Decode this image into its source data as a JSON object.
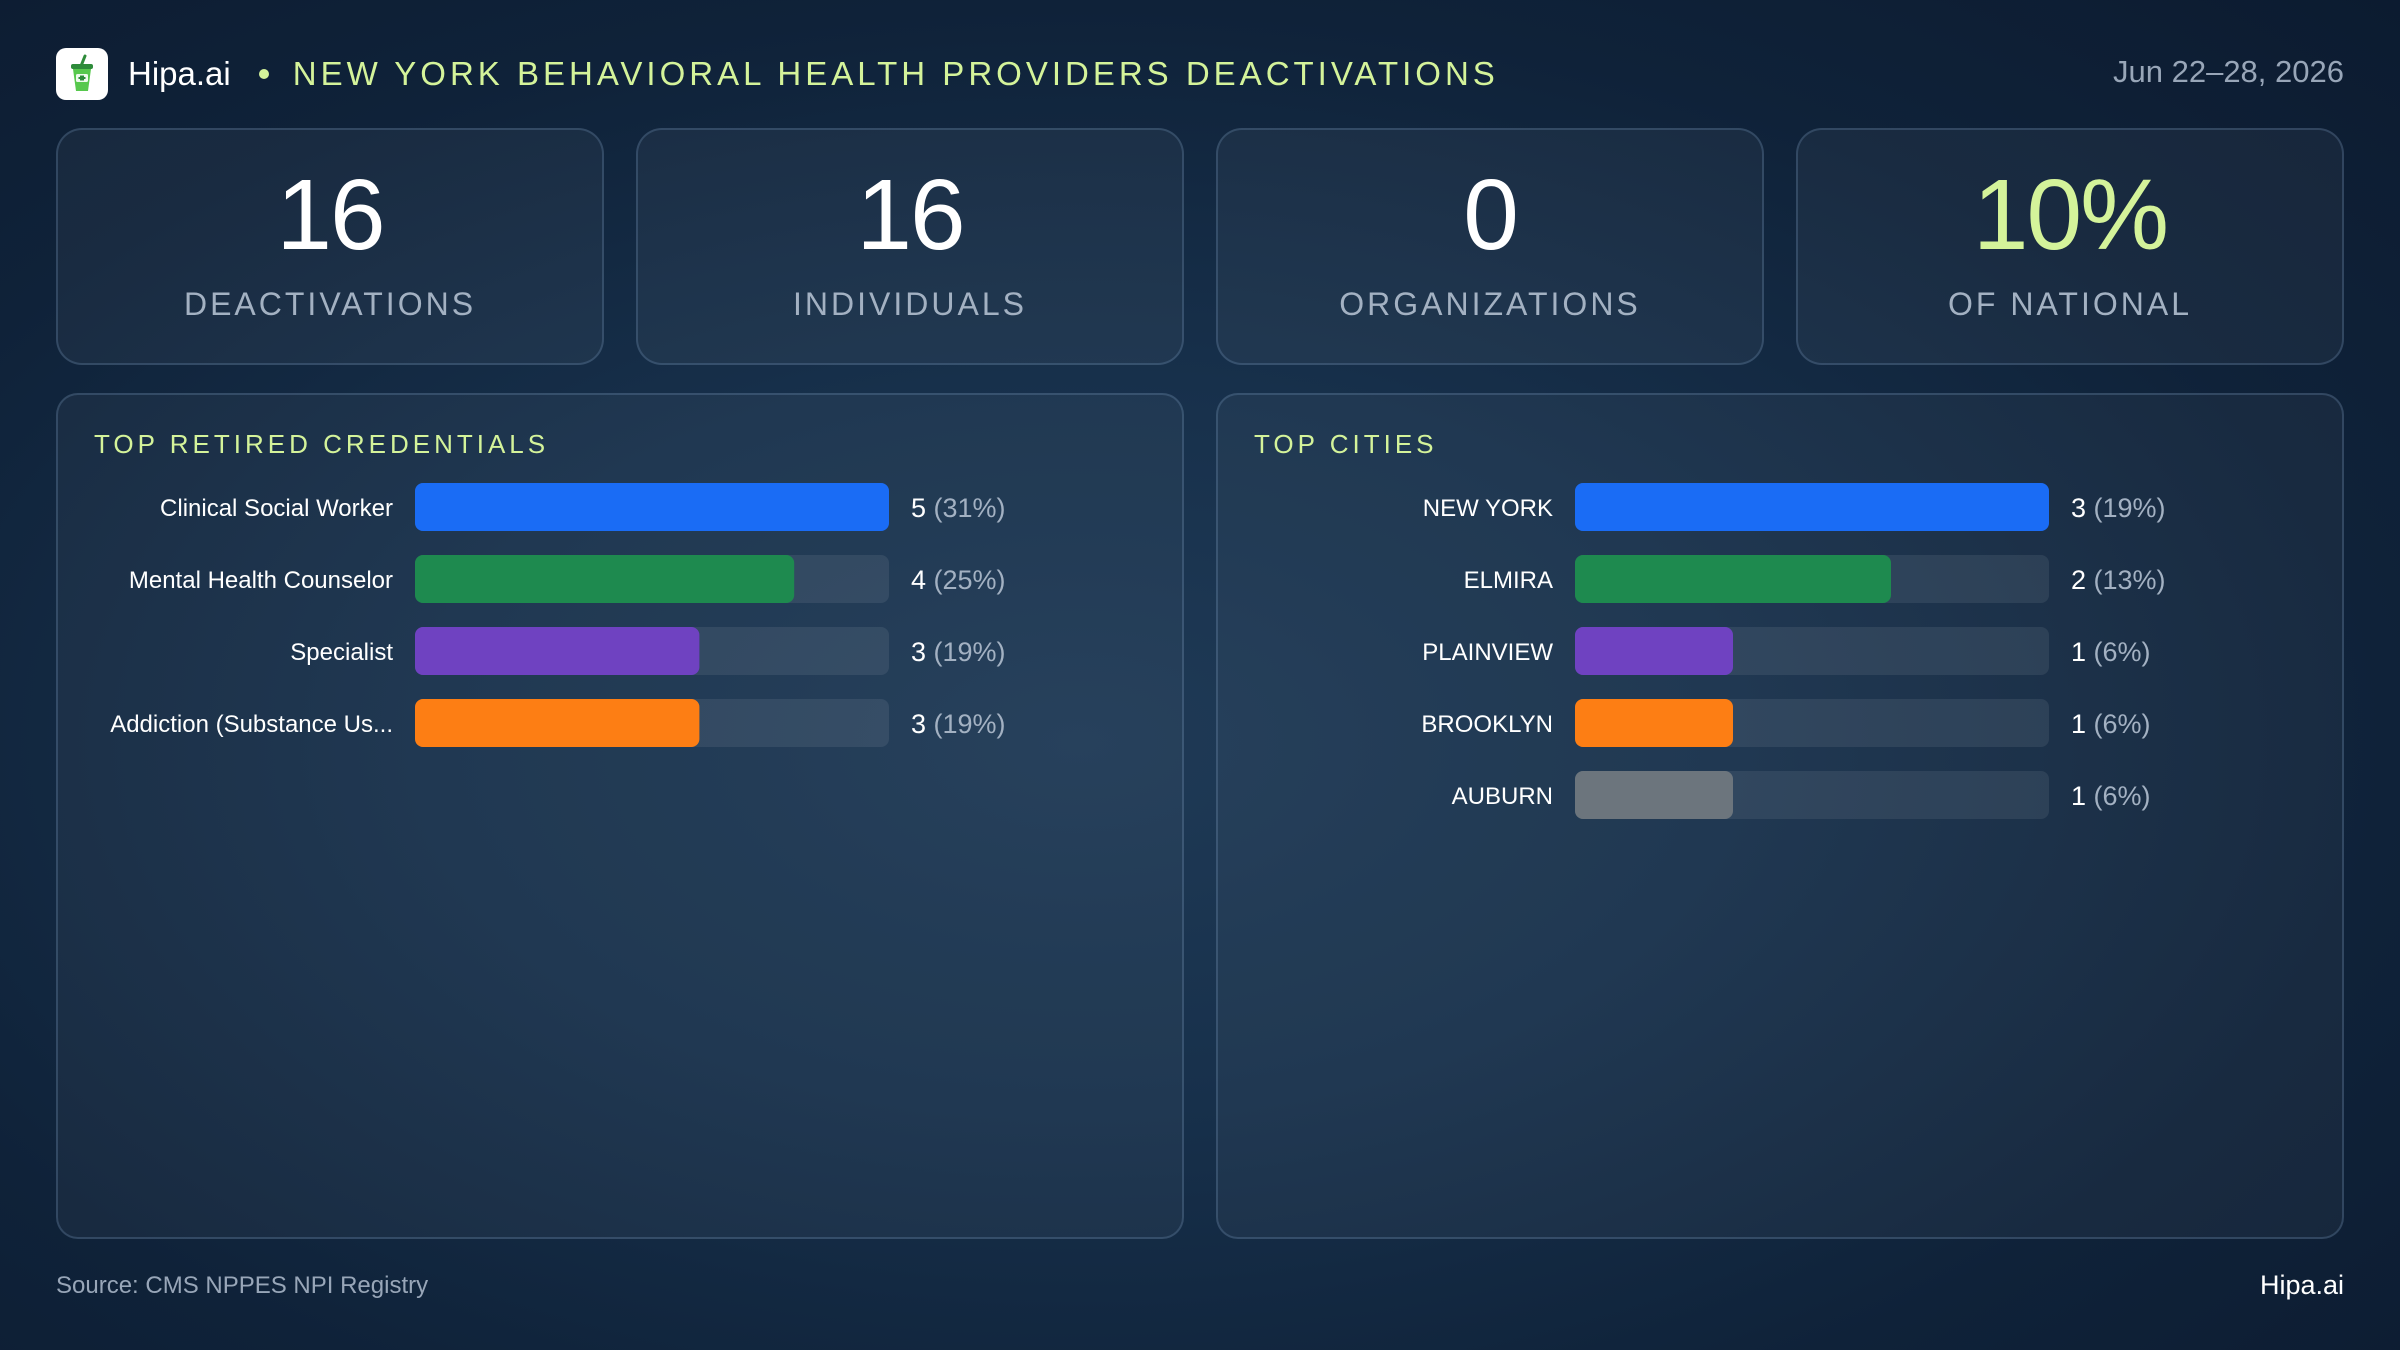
{
  "header": {
    "brand": "Hipa.ai",
    "title": "NEW YORK BEHAVIORAL HEALTH PROVIDERS DEACTIVATIONS",
    "date": "Jun 22–28, 2026"
  },
  "stats": [
    {
      "value": "16",
      "label": "DEACTIVATIONS"
    },
    {
      "value": "16",
      "label": "INDIVIDUALS"
    },
    {
      "value": "0",
      "label": "ORGANIZATIONS"
    },
    {
      "value": "10%",
      "label": "OF NATIONAL"
    }
  ],
  "chart_data": [
    {
      "type": "bar",
      "orientation": "horizontal",
      "title": "TOP RETIRED CREDENTIALS",
      "categories": [
        "Clinical Social Worker",
        "Mental Health Counselor",
        "Specialist",
        "Addiction (Substance Us..."
      ],
      "values": [
        5,
        4,
        3,
        3
      ],
      "value_labels": [
        "5",
        "4",
        "3",
        "3"
      ],
      "pct_labels": [
        "(31%)",
        "(25%)",
        "(19%)",
        "(19%)"
      ],
      "colors": [
        "#1a6cf5",
        "#1e8a4f",
        "#6f42c1",
        "#fd7e14"
      ],
      "max": 5
    },
    {
      "type": "bar",
      "orientation": "horizontal",
      "title": "TOP CITIES",
      "categories": [
        "NEW YORK",
        "ELMIRA",
        "PLAINVIEW",
        "BROOKLYN",
        "AUBURN"
      ],
      "values": [
        3,
        2,
        1,
        1,
        1
      ],
      "value_labels": [
        "3",
        "2",
        "1",
        "1",
        "1"
      ],
      "pct_labels": [
        "(19%)",
        "(13%)",
        "(6%)",
        "(6%)",
        "(6%)"
      ],
      "colors": [
        "#1a6cf5",
        "#1e8a4f",
        "#6f42c1",
        "#fd7e14",
        "#6c757d"
      ],
      "max": 3
    }
  ],
  "footer": {
    "source": "Source: CMS NPPES NPI Registry",
    "brand": "Hipa.ai"
  },
  "icons": {
    "logo": "cup-with-straw-icon"
  }
}
